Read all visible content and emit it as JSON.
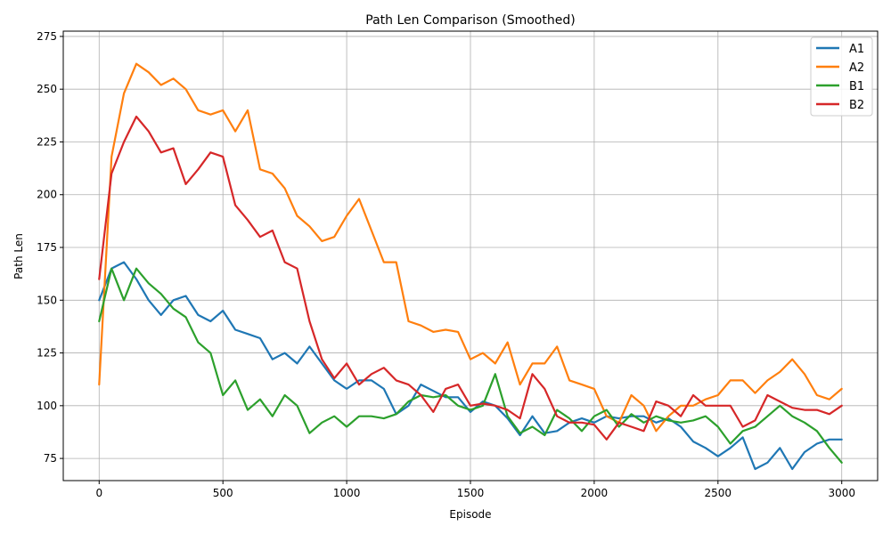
{
  "chart_data": {
    "type": "line",
    "title": "Path Len Comparison (Smoothed)",
    "xlabel": "Episode",
    "ylabel": "Path Len",
    "xlim": [
      -145,
      3145
    ],
    "ylim": [
      64.5,
      277.5
    ],
    "xticks": [
      0,
      500,
      1000,
      1500,
      2000,
      2500,
      3000
    ],
    "yticks": [
      75,
      100,
      125,
      150,
      175,
      200,
      225,
      250,
      275
    ],
    "grid": true,
    "legend": "top-right",
    "x": [
      0,
      50,
      100,
      150,
      200,
      250,
      300,
      350,
      400,
      450,
      500,
      550,
      600,
      650,
      700,
      750,
      800,
      850,
      900,
      950,
      1000,
      1050,
      1100,
      1150,
      1200,
      1250,
      1300,
      1350,
      1400,
      1450,
      1500,
      1550,
      1600,
      1650,
      1700,
      1750,
      1800,
      1850,
      1900,
      1950,
      2000,
      2050,
      2100,
      2150,
      2200,
      2250,
      2300,
      2350,
      2400,
      2450,
      2500,
      2550,
      2600,
      2650,
      2700,
      2750,
      2800,
      2850,
      2900,
      2950,
      3000
    ],
    "series": [
      {
        "name": "A1",
        "color": "#1f77b4",
        "values": [
          150,
          165,
          168,
          160,
          150,
          143,
          150,
          152,
          143,
          140,
          145,
          136,
          134,
          132,
          122,
          125,
          120,
          128,
          120,
          112,
          108,
          112,
          112,
          108,
          96,
          100,
          110,
          107,
          104,
          104,
          97,
          102,
          100,
          94,
          86,
          95,
          87,
          88,
          92,
          94,
          92,
          95,
          94,
          95,
          95,
          92,
          94,
          90,
          83,
          80,
          76,
          80,
          85,
          70,
          73,
          80,
          70,
          78,
          82,
          84,
          84
        ]
      },
      {
        "name": "A2",
        "color": "#ff7f0e",
        "values": [
          110,
          218,
          248,
          262,
          258,
          252,
          255,
          250,
          240,
          238,
          240,
          230,
          240,
          212,
          210,
          203,
          190,
          185,
          178,
          180,
          190,
          198,
          183,
          168,
          168,
          140,
          138,
          135,
          136,
          135,
          122,
          125,
          120,
          130,
          110,
          120,
          120,
          128,
          112,
          110,
          108,
          95,
          92,
          105,
          100,
          88,
          95,
          100,
          100,
          103,
          105,
          112,
          112,
          106,
          112,
          116,
          122,
          115,
          105,
          103,
          108
        ]
      },
      {
        "name": "B1",
        "color": "#2ca02c",
        "values": [
          140,
          165,
          150,
          165,
          158,
          153,
          146,
          142,
          130,
          125,
          105,
          112,
          98,
          103,
          95,
          105,
          100,
          87,
          92,
          95,
          90,
          95,
          95,
          94,
          96,
          102,
          105,
          104,
          105,
          100,
          98,
          100,
          115,
          95,
          87,
          90,
          86,
          98,
          94,
          88,
          95,
          98,
          90,
          96,
          92,
          95,
          93,
          92,
          93,
          95,
          90,
          82,
          88,
          90,
          95,
          100,
          95,
          92,
          88,
          80,
          73
        ]
      },
      {
        "name": "B2",
        "color": "#d62728",
        "values": [
          160,
          210,
          225,
          237,
          230,
          220,
          222,
          205,
          212,
          220,
          218,
          195,
          188,
          180,
          183,
          168,
          165,
          140,
          122,
          113,
          120,
          110,
          115,
          118,
          112,
          110,
          105,
          97,
          108,
          110,
          100,
          101,
          100,
          98,
          94,
          115,
          108,
          95,
          92,
          92,
          91,
          84,
          92,
          90,
          88,
          102,
          100,
          95,
          105,
          100,
          100,
          100,
          90,
          93,
          105,
          102,
          99,
          98,
          98,
          96,
          100
        ]
      }
    ]
  }
}
